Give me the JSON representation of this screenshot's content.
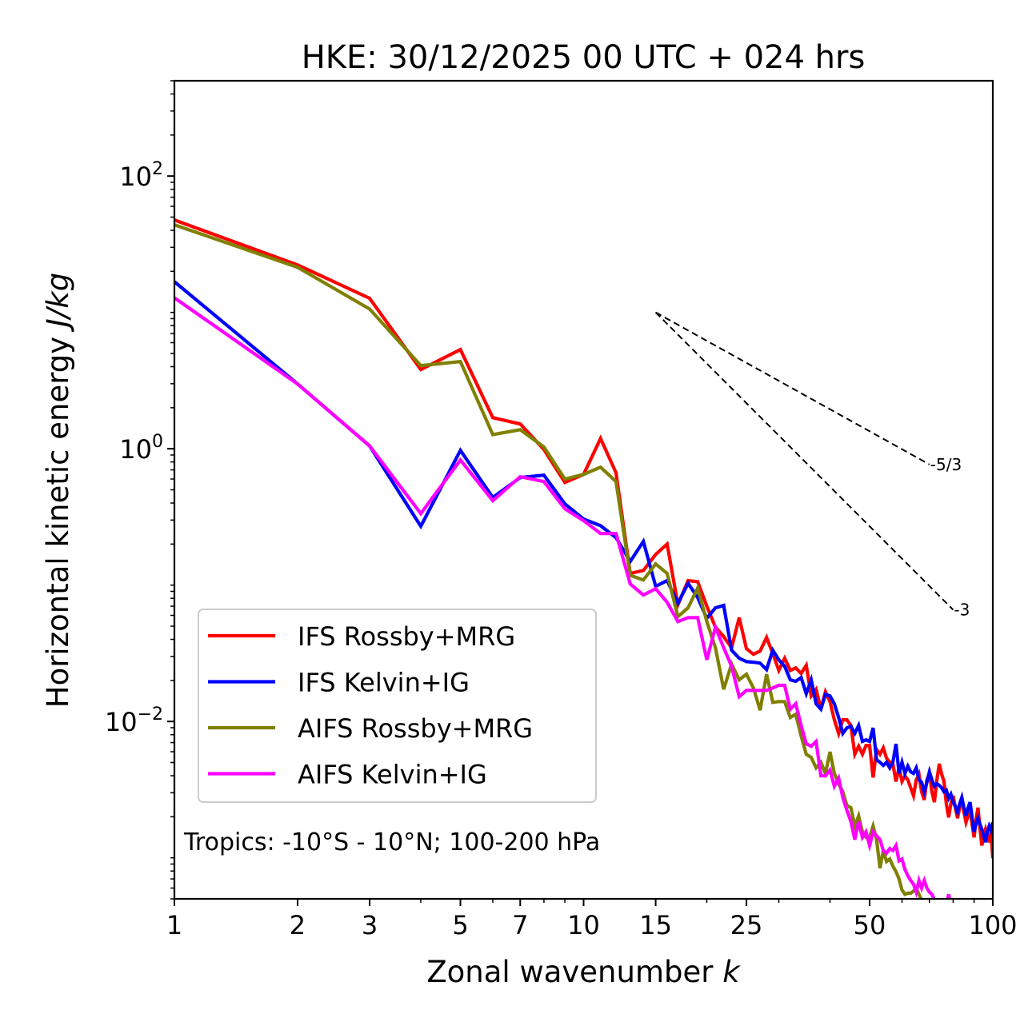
{
  "chart_data": {
    "type": "line",
    "title": "HKE: 30/12/2025 00 UTC + 024 hrs",
    "xlabel": "Zonal wavenumber",
    "xlabel_italic": "k",
    "ylabel": "Horizontal kinetic energy",
    "ylabel_italic": "J/kg",
    "xscale": "log",
    "yscale": "log",
    "xlim": [
      1,
      100
    ],
    "ylim": [
      0.0005,
      500
    ],
    "grid": false,
    "legend_position": "lower-left",
    "x_ticks": [
      {
        "value": 1,
        "label": "1"
      },
      {
        "value": 2,
        "label": "2"
      },
      {
        "value": 3,
        "label": "3"
      },
      {
        "value": 5,
        "label": "5"
      },
      {
        "value": 7,
        "label": "7"
      },
      {
        "value": 10,
        "label": "10"
      },
      {
        "value": 15,
        "label": "15"
      },
      {
        "value": 25,
        "label": "25"
      },
      {
        "value": 50,
        "label": "50"
      },
      {
        "value": 100,
        "label": "100"
      }
    ],
    "y_ticks": [
      {
        "value": 100,
        "base": "10",
        "exp": "2"
      },
      {
        "value": 1,
        "base": "10",
        "exp": "0"
      },
      {
        "value": 0.01,
        "base": "10",
        "exp": "−2"
      }
    ],
    "annotation": "Tropics: -10°S - 10°N; 100-200 hPa",
    "reference_lines": [
      {
        "label": "-5/3",
        "slope": -1.6667,
        "k_start": 15,
        "e_start": 10,
        "k_end": 70
      },
      {
        "label": "-3",
        "slope": -3,
        "k_start": 15,
        "e_start": 10,
        "k_end": 80
      }
    ],
    "series": [
      {
        "name": "IFS Rossby+MRG",
        "color": "#ff0000",
        "k": [
          1,
          2,
          3,
          4,
          5,
          6,
          7,
          8,
          9,
          10,
          11,
          12,
          13,
          14,
          15,
          16,
          17,
          18,
          19,
          20,
          21,
          22,
          23,
          24,
          25,
          26,
          27,
          28,
          29,
          30,
          31,
          32,
          33,
          34,
          35,
          36,
          37,
          38,
          39,
          40,
          41,
          42,
          43,
          44,
          45,
          46,
          47,
          48,
          49,
          50,
          51,
          52,
          53,
          54,
          55,
          56,
          57,
          58,
          59,
          60,
          61,
          62,
          63,
          64,
          65,
          66,
          67,
          68,
          69,
          70,
          71,
          72,
          73,
          74,
          75,
          76,
          77,
          78,
          79,
          80,
          81,
          82,
          83,
          84,
          85,
          86,
          87,
          88,
          89,
          90,
          91,
          92,
          93,
          94,
          95,
          96,
          97,
          98,
          99,
          100
        ],
        "values": [
          47.6,
          22.3,
          12.7,
          3.81,
          5.34,
          1.69,
          1.52,
          0.987,
          0.567,
          0.649,
          1.19,
          0.667,
          0.122,
          0.128,
          0.168,
          0.2,
          0.0718,
          0.108,
          0.106,
          0.07,
          0.0492,
          0.0419,
          0.0347,
          0.0578,
          0.0342,
          0.0311,
          0.0328,
          0.0413,
          0.0315,
          0.0237,
          0.0291,
          0.0237,
          0.0247,
          0.0225,
          0.0258,
          0.0154,
          0.0172,
          0.0123,
          0.0165,
          0.014,
          0.0103,
          0.00817,
          0.0103,
          0.0103,
          0.00935,
          0.00575,
          0.00658,
          0.00575,
          0.00667,
          0.00667,
          0.00388,
          0.00623,
          0.00575,
          0.0064,
          0.00537,
          0.00502,
          0.00489,
          0.00363,
          0.00457,
          0.00363,
          0.00399,
          0.00373,
          0.00326,
          0.00285,
          0.00373,
          0.0041,
          0.00305,
          0.00266,
          0.00373,
          0.00416,
          0.00305,
          0.00256,
          0.00373,
          0.00489,
          0.0041,
          0.00363,
          0.00249,
          0.00198,
          0.00249,
          0.00285,
          0.00233,
          0.00195,
          0.00233,
          0.00259,
          0.00217,
          0.00182,
          0.00203,
          0.00223,
          0.00177,
          0.00141,
          0.0019,
          0.00233,
          0.00166,
          0.00123,
          0.00145,
          0.00162,
          0.00145,
          0.0013,
          0.00155,
          0.000993
        ]
      },
      {
        "name": "IFS Kelvin+IG",
        "color": "#0000ff",
        "k": [
          1,
          2,
          3,
          4,
          5,
          6,
          7,
          8,
          9,
          10,
          11,
          12,
          13,
          14,
          15,
          16,
          17,
          18,
          19,
          20,
          21,
          22,
          23,
          24,
          25,
          26,
          27,
          28,
          29,
          30,
          31,
          32,
          33,
          34,
          35,
          36,
          37,
          38,
          39,
          40,
          41,
          42,
          43,
          44,
          45,
          46,
          47,
          48,
          49,
          50,
          51,
          52,
          53,
          54,
          55,
          56,
          57,
          58,
          59,
          60,
          61,
          62,
          63,
          64,
          65,
          66,
          67,
          68,
          69,
          70,
          71,
          72,
          73,
          74,
          75,
          76,
          77,
          78,
          79,
          80,
          81,
          82,
          83,
          84,
          85,
          86,
          87,
          88,
          89,
          90,
          91,
          92,
          93,
          94,
          95,
          96,
          97,
          98,
          99,
          100
        ],
        "values": [
          16.8,
          2.99,
          1.05,
          0.27,
          0.973,
          0.439,
          0.615,
          0.64,
          0.394,
          0.305,
          0.273,
          0.223,
          0.149,
          0.209,
          0.098,
          0.108,
          0.0738,
          0.103,
          0.0811,
          0.0571,
          0.0681,
          0.0709,
          0.0333,
          0.0291,
          0.0275,
          0.0272,
          0.0268,
          0.024,
          0.0333,
          0.0283,
          0.0254,
          0.0202,
          0.0197,
          0.021,
          0.016,
          0.0202,
          0.0135,
          0.0123,
          0.0158,
          0.0154,
          0.0135,
          0.0107,
          0.00817,
          0.00897,
          0.00922,
          0.00817,
          0.00935,
          0.00714,
          0.00733,
          0.00714,
          0.00897,
          0.00523,
          0.00502,
          0.00476,
          0.00502,
          0.00457,
          0.00502,
          0.00685,
          0.00416,
          0.00502,
          0.00416,
          0.0047,
          0.00427,
          0.00416,
          0.00457,
          0.00373,
          0.00358,
          0.00305,
          0.00358,
          0.00427,
          0.00373,
          0.00335,
          0.00349,
          0.0034,
          0.00326,
          0.00305,
          0.00313,
          0.00273,
          0.00292,
          0.00256,
          0.00239,
          0.00217,
          0.00249,
          0.00277,
          0.00233,
          0.00203,
          0.00233,
          0.00256,
          0.00198,
          0.00155,
          0.00177,
          0.00195,
          0.00177,
          0.00162,
          0.00145,
          0.0013,
          0.00155,
          0.00171,
          0.00159,
          0.00182
        ]
      },
      {
        "name": "AIFS Rossby+MRG",
        "color": "#808000",
        "k": [
          1,
          2,
          3,
          4,
          5,
          6,
          7,
          8,
          9,
          10,
          11,
          12,
          13,
          14,
          15,
          16,
          17,
          18,
          19,
          20,
          21,
          22,
          23,
          24,
          25,
          26,
          27,
          28,
          29,
          30,
          31,
          32,
          33,
          34,
          35,
          36,
          37,
          38,
          39,
          40,
          41,
          42,
          43,
          44,
          45,
          46,
          47,
          48,
          49,
          50,
          51,
          52,
          53,
          54,
          55,
          56,
          57,
          58,
          59,
          60,
          61,
          62,
          63,
          64,
          65,
          66,
          67
        ],
        "values": [
          43.9,
          21.4,
          10.6,
          4.07,
          4.36,
          1.27,
          1.38,
          1.03,
          0.599,
          0.649,
          0.733,
          0.575,
          0.118,
          0.109,
          0.143,
          0.122,
          0.0587,
          0.0681,
          0.0954,
          0.0541,
          0.0347,
          0.0172,
          0.0264,
          0.0202,
          0.0222,
          0.0176,
          0.0121,
          0.0222,
          0.0138,
          0.014,
          0.014,
          0.0107,
          0.0113,
          0.00784,
          0.00575,
          0.00545,
          0.00457,
          0.00502,
          0.00416,
          0.00598,
          0.00416,
          0.00349,
          0.00305,
          0.00242,
          0.00233,
          0.00171,
          0.00203,
          0.00155,
          0.00141,
          0.00141,
          0.00171,
          0.00136,
          0.00084,
          0.00113,
          0.00094,
          0.00098,
          0.00087,
          0.00079,
          0.0007,
          0.00058,
          0.00054,
          0.00055,
          0.00055,
          0.00057,
          0.0006,
          0.00054,
          0.00049
        ]
      },
      {
        "name": "AIFS Kelvin+IG",
        "color": "#ff00ff",
        "k": [
          1,
          2,
          3,
          4,
          5,
          6,
          7,
          8,
          9,
          10,
          11,
          12,
          13,
          14,
          15,
          16,
          17,
          18,
          19,
          20,
          21,
          22,
          23,
          24,
          25,
          26,
          27,
          28,
          29,
          30,
          31,
          32,
          33,
          34,
          35,
          36,
          37,
          38,
          39,
          40,
          41,
          42,
          43,
          44,
          45,
          46,
          47,
          48,
          49,
          50,
          51,
          52,
          53,
          54,
          55,
          56,
          57,
          58,
          59,
          60,
          61,
          62,
          63,
          64,
          65,
          66,
          67,
          68,
          69,
          70,
          71,
          72
        ],
        "values": [
          12.8,
          2.99,
          1.05,
          0.335,
          0.828,
          0.416,
          0.624,
          0.575,
          0.363,
          0.297,
          0.239,
          0.239,
          0.102,
          0.0845,
          0.0942,
          0.0748,
          0.0541,
          0.0578,
          0.0578,
          0.0283,
          0.0492,
          0.0347,
          0.0254,
          0.0152,
          0.0169,
          0.0169,
          0.0169,
          0.0169,
          0.0176,
          0.0184,
          0.0184,
          0.0123,
          0.0135,
          0.00935,
          0.00685,
          0.00658,
          0.00714,
          0.00399,
          0.00399,
          0.00439,
          0.00335,
          0.00384,
          0.00277,
          0.00223,
          0.00185,
          0.00136,
          0.00185,
          0.00141,
          0.00155,
          0.00123,
          0.00155,
          0.00145,
          0.00136,
          0.00113,
          0.00108,
          0.00117,
          0.00113,
          0.00123,
          0.00095,
          0.00098,
          0.00082,
          0.00074,
          0.00068,
          0.00064,
          0.00056,
          0.00068,
          0.0006,
          0.00068,
          0.0006,
          0.00056,
          0.00054,
          0.00049
        ]
      },
      {
        "name": "AIFS Kelvin+IG (isolated tail)",
        "color": "#ff00ff",
        "show_in_legend": false,
        "k": [
          77.5,
          78,
          78.5
        ],
        "values": [
          0.00049,
          0.00054,
          0.00049
        ]
      }
    ]
  }
}
